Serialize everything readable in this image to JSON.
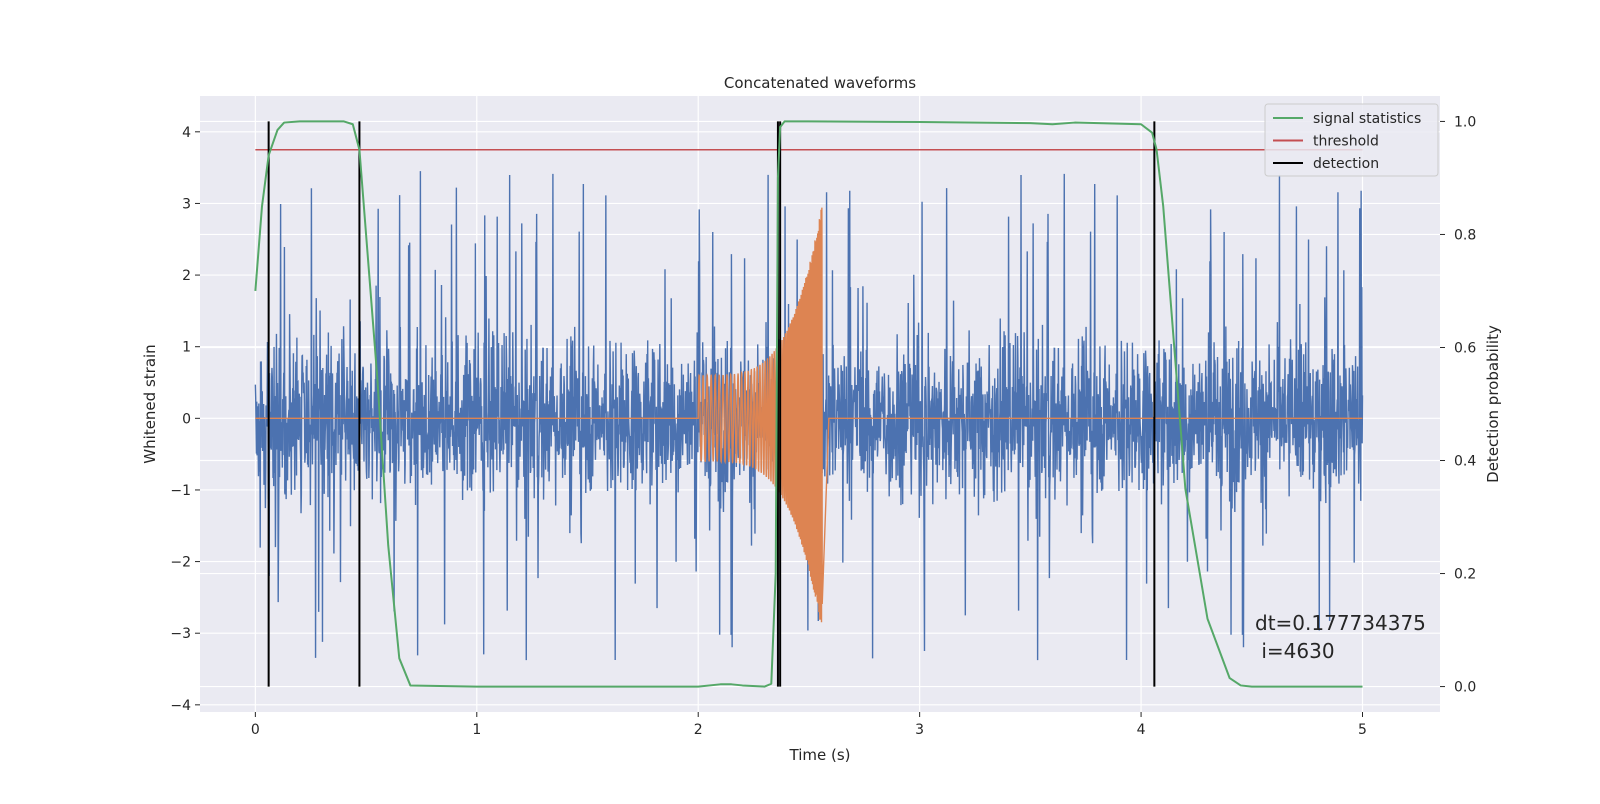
{
  "chart_data": {
    "type": "line",
    "title": "Concatenated waveforms",
    "xlabel": "Time (s)",
    "ylabel_left": "Whitened strain",
    "ylabel_right": "Detection probability",
    "xlim": [
      -0.25,
      5.35
    ],
    "ylim_left": [
      -4.1,
      4.5
    ],
    "ylim_right": [
      -0.045,
      1.045
    ],
    "x_ticks": [
      0,
      1,
      2,
      3,
      4,
      5
    ],
    "y_ticks_left": [
      -4,
      -3,
      -2,
      -1,
      0,
      1,
      2,
      3,
      4
    ],
    "y_ticks_right": [
      0.0,
      0.2,
      0.4,
      0.6,
      0.8,
      1.0
    ],
    "x_tick_labels": [
      "0",
      "1",
      "2",
      "3",
      "4",
      "5"
    ],
    "y_tick_labels_left": [
      "−4",
      "−3",
      "−2",
      "−1",
      "0",
      "1",
      "2",
      "3",
      "4"
    ],
    "y_tick_labels_right": [
      "0.0",
      "0.2",
      "0.4",
      "0.6",
      "0.8",
      "1.0"
    ],
    "grid": true,
    "legend_position": "top-right",
    "legend": [
      {
        "label": "signal statistics",
        "color": "#55a868"
      },
      {
        "label": "threshold",
        "color": "#c44e52"
      },
      {
        "label": "detection",
        "color": "#000000"
      }
    ],
    "series": [
      {
        "role": "whitened_strain_noise",
        "axis": "left",
        "color": "#4c72b0",
        "x_range": [
          0,
          5
        ],
        "typical_range": [
          -1.8,
          1.8
        ],
        "max": 3.6,
        "min": -3.55
      },
      {
        "role": "injected_waveform",
        "axis": "left",
        "color": "#dd8452",
        "chirp_start": 2.0,
        "chirp_end": 2.56,
        "start_amplitude": 0.6,
        "peak_amplitude": 3.0,
        "peak_min": -3.15
      },
      {
        "name": "signal statistics",
        "axis": "right",
        "color": "#55a868",
        "x": [
          0.0,
          0.03,
          0.06,
          0.1,
          0.13,
          0.2,
          0.3,
          0.4,
          0.44,
          0.47,
          0.5,
          0.55,
          0.6,
          0.65,
          0.7,
          1.0,
          1.5,
          2.0,
          2.1,
          2.15,
          2.2,
          2.3,
          2.33,
          2.35,
          2.36,
          2.37,
          2.39,
          2.5,
          3.0,
          3.5,
          3.6,
          3.7,
          4.0,
          4.05,
          4.07,
          4.1,
          4.15,
          4.2,
          4.3,
          4.4,
          4.45,
          4.5,
          5.0
        ],
        "y": [
          0.7,
          0.85,
          0.94,
          0.985,
          0.998,
          1.0,
          1.0,
          1.0,
          0.995,
          0.95,
          0.8,
          0.55,
          0.25,
          0.05,
          0.002,
          0.0,
          0.0,
          0.0,
          0.004,
          0.004,
          0.002,
          0.0,
          0.005,
          0.2,
          0.9,
          0.99,
          1.0,
          1.0,
          0.999,
          0.997,
          0.995,
          0.998,
          0.995,
          0.98,
          0.95,
          0.85,
          0.6,
          0.35,
          0.12,
          0.015,
          0.002,
          0.0,
          0.0
        ]
      },
      {
        "name": "threshold",
        "axis": "right",
        "color": "#c44e52",
        "x": [
          0,
          5
        ],
        "y": [
          0.95,
          0.95
        ]
      }
    ],
    "detections": [
      0.06,
      0.47,
      2.36,
      2.37,
      4.06
    ],
    "annotation": {
      "line1": "dt=0.177734375",
      "line2": " i=4630"
    }
  }
}
